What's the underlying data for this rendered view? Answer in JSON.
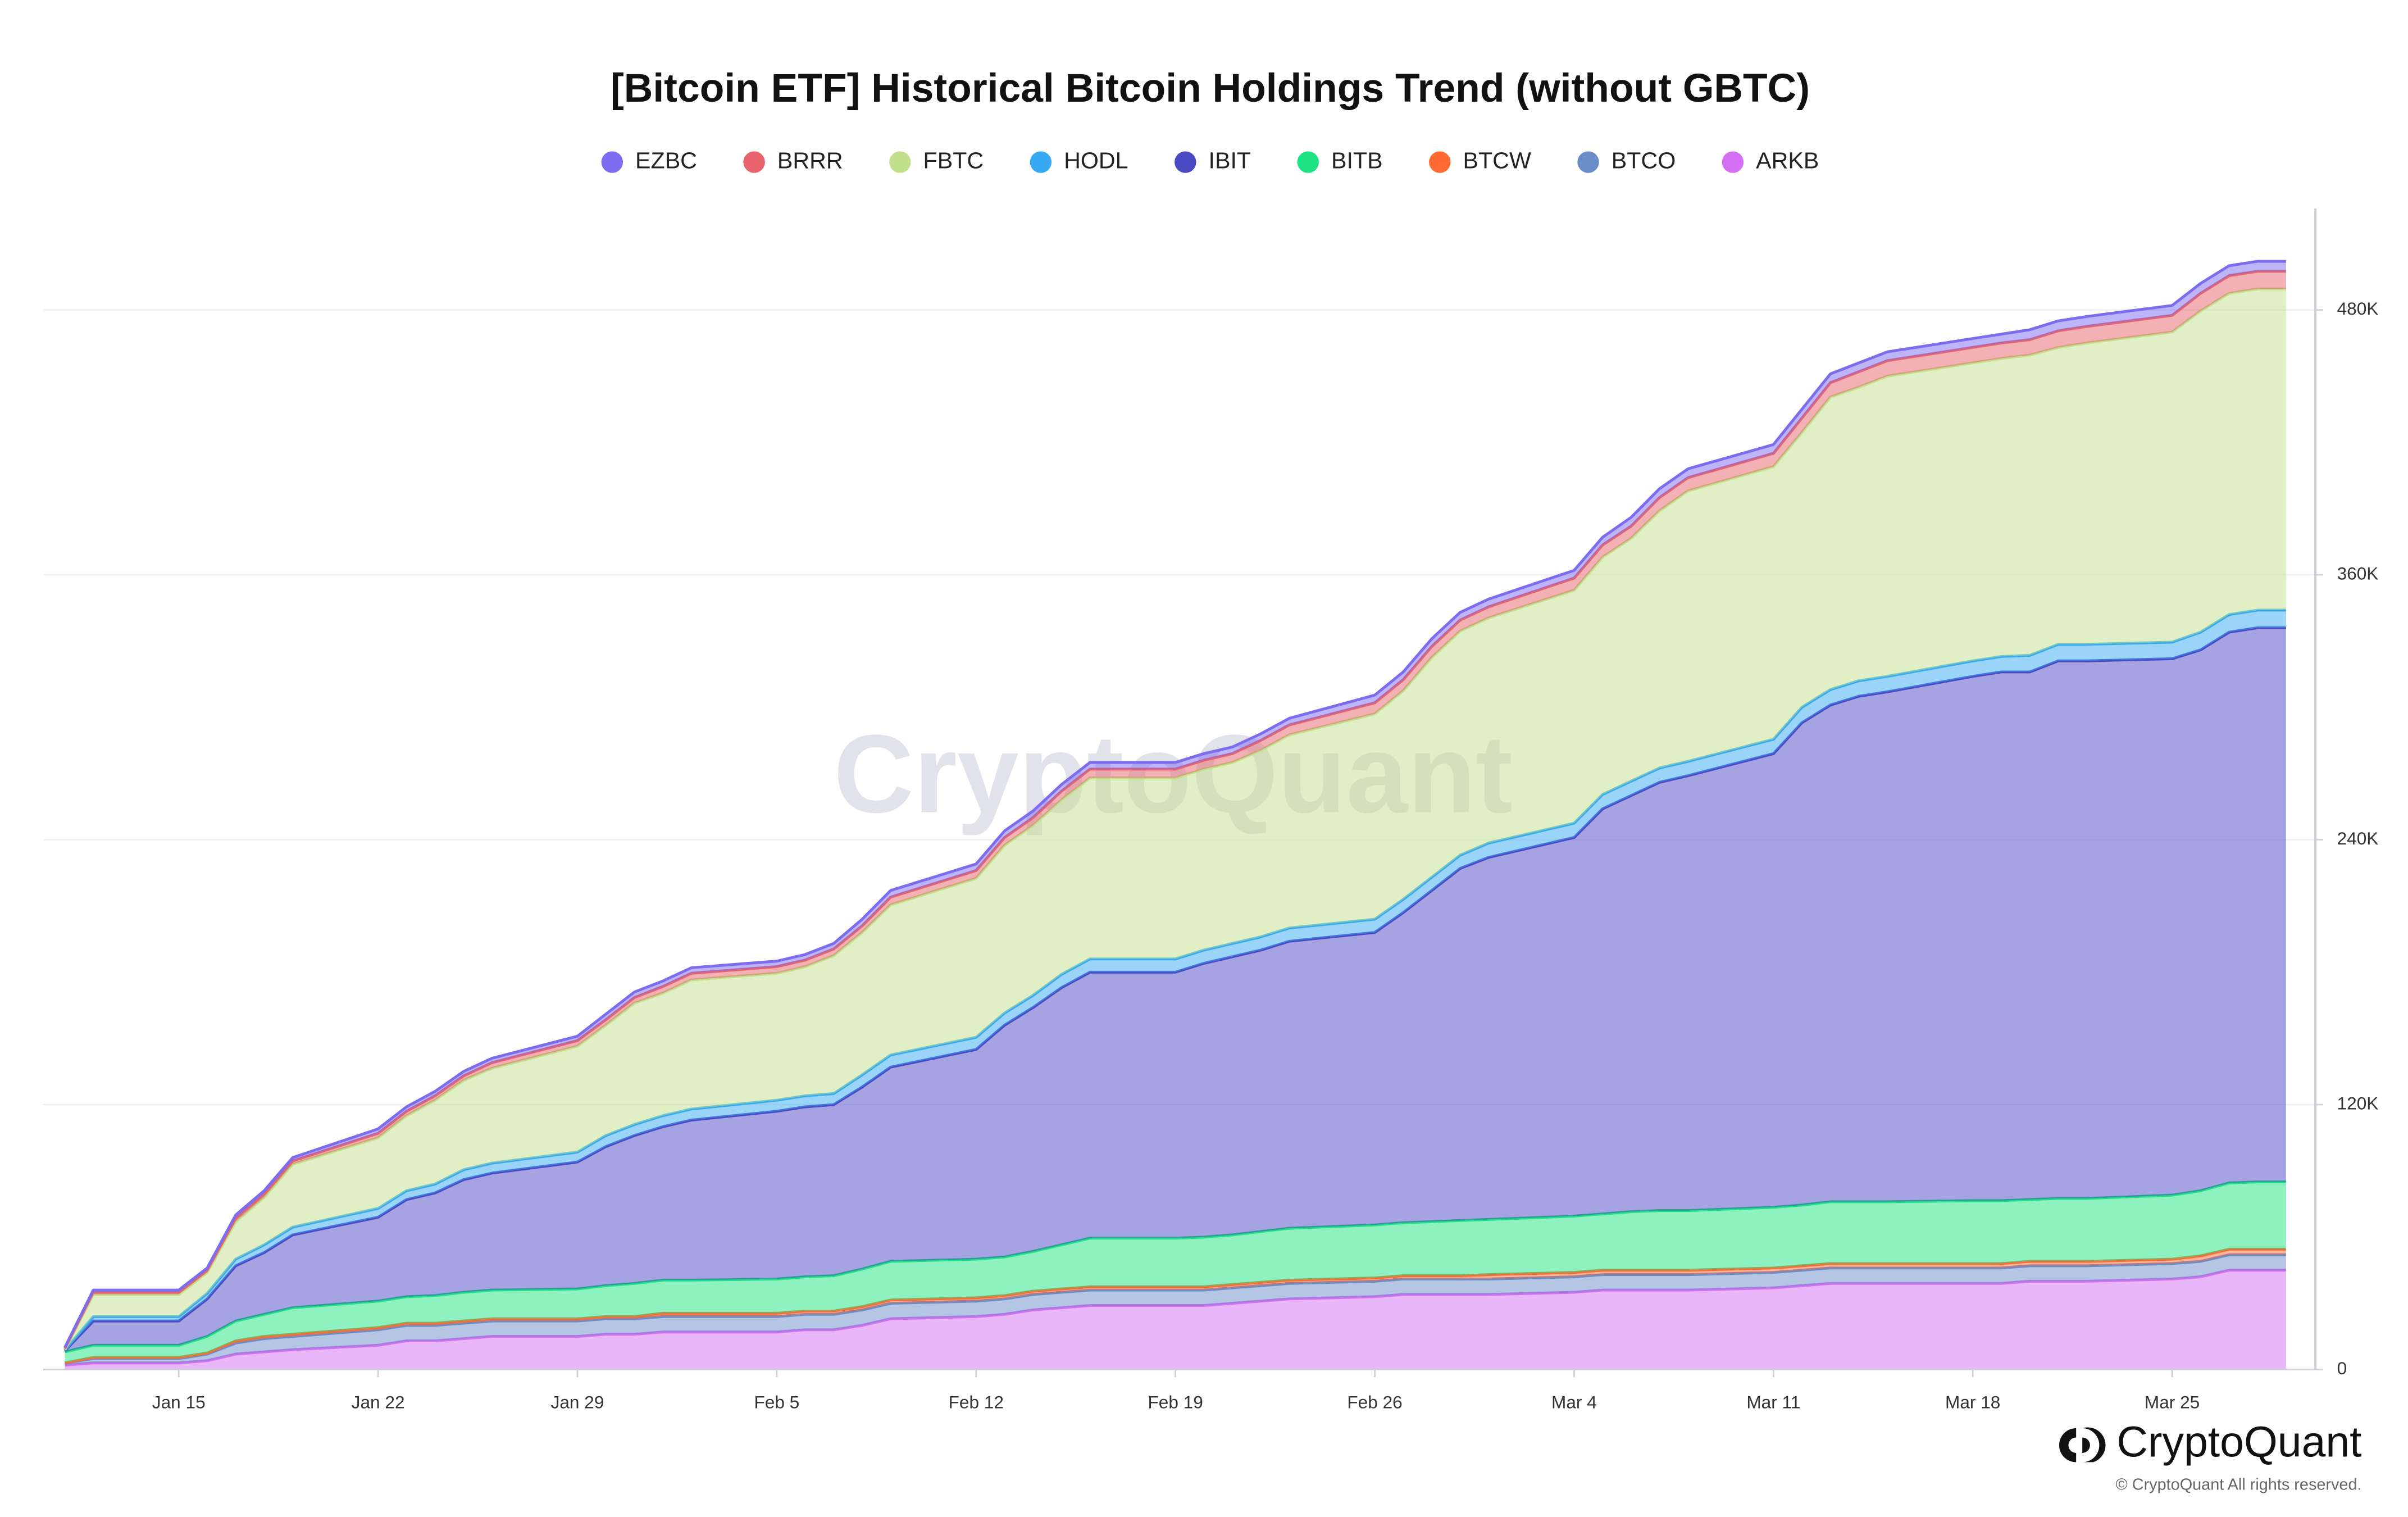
{
  "chart_data": {
    "type": "stacked_area",
    "title": "[Bitcoin ETF] Historical Bitcoin Holdings Trend (without GBTC)",
    "watermark": "CryptoQuant",
    "logo_text": "CryptoQuant",
    "copyright": "© CryptoQuant All rights reserved.",
    "x": [
      "Jan 11",
      "Jan 12",
      "Jan 15",
      "Jan 16",
      "Jan 17",
      "Jan 18",
      "Jan 19",
      "Jan 22",
      "Jan 23",
      "Jan 24",
      "Jan 25",
      "Jan 26",
      "Jan 29",
      "Jan 30",
      "Jan 31",
      "Feb 1",
      "Feb 2",
      "Feb 5",
      "Feb 6",
      "Feb 7",
      "Feb 8",
      "Feb 9",
      "Feb 12",
      "Feb 13",
      "Feb 14",
      "Feb 15",
      "Feb 16",
      "Feb 19",
      "Feb 20",
      "Feb 21",
      "Feb 22",
      "Feb 23",
      "Feb 26",
      "Feb 27",
      "Feb 28",
      "Feb 29",
      "Mar 1",
      "Mar 4",
      "Mar 5",
      "Mar 6",
      "Mar 7",
      "Mar 8",
      "Mar 11",
      "Mar 12",
      "Mar 13",
      "Mar 14",
      "Mar 15",
      "Mar 18",
      "Mar 19",
      "Mar 20",
      "Mar 21",
      "Mar 22",
      "Mar 25",
      "Mar 26",
      "Mar 27",
      "Mar 28",
      "Mar 29"
    ],
    "xlim": [
      "Jan 11",
      "Mar 29"
    ],
    "xticks": [
      "Jan 15",
      "Jan 22",
      "Jan 29",
      "Feb 5",
      "Feb 12",
      "Feb 19",
      "Feb 26",
      "Mar 4",
      "Mar 11",
      "Mar 18",
      "Mar 25"
    ],
    "ylim": [
      0,
      520000
    ],
    "yticks": [
      0,
      {
        "value": 120000,
        "label": "120K"
      },
      {
        "value": 240000,
        "label": "240K"
      },
      {
        "value": 360000,
        "label": "360K"
      },
      {
        "value": 480000,
        "label": "480K"
      }
    ],
    "grid": true,
    "legend": "top",
    "series": [
      {
        "name": "EZBC",
        "color": "#7b6cf0",
        "values": [
          500,
          1000,
          1000,
          1000,
          1500,
          1500,
          1500,
          2000,
          2000,
          2000,
          2000,
          2000,
          2000,
          2500,
          2500,
          2500,
          2500,
          2500,
          2500,
          2500,
          3000,
          3000,
          3000,
          3000,
          3000,
          3000,
          3000,
          3000,
          3000,
          3000,
          3000,
          3000,
          3500,
          3500,
          3500,
          3500,
          3500,
          3500,
          3500,
          4000,
          4000,
          4000,
          4000,
          4000,
          4000,
          4000,
          4000,
          4000,
          4000,
          4500,
          4500,
          4500,
          4500,
          4500,
          4500,
          4500,
          4500
        ]
      },
      {
        "name": "BRRR",
        "color": "#e8646c",
        "values": [
          500,
          1000,
          1000,
          1000,
          1500,
          1500,
          1500,
          2000,
          2000,
          2000,
          2000,
          2500,
          2500,
          2500,
          2500,
          3000,
          3000,
          3000,
          3000,
          3000,
          3000,
          3500,
          3500,
          3500,
          3500,
          4000,
          4000,
          4000,
          4000,
          4000,
          4500,
          4500,
          5000,
          5000,
          5000,
          5000,
          5000,
          5500,
          5500,
          5500,
          6000,
          6000,
          6000,
          6500,
          6500,
          7000,
          7000,
          7000,
          7000,
          7000,
          7500,
          7500,
          7500,
          8000,
          8000,
          8000,
          8000
        ]
      },
      {
        "name": "FBTC",
        "color": "#c2e08c",
        "values": [
          200,
          10000,
          10000,
          9500,
          17000,
          21500,
          28500,
          32000,
          34000,
          38000,
          40500,
          43000,
          48000,
          50000,
          55000,
          55500,
          58500,
          57500,
          58500,
          62500,
          64500,
          68000,
          72000,
          76000,
          77000,
          79000,
          82000,
          82000,
          82000,
          82000,
          84500,
          87500,
          93000,
          94500,
          99500,
          101500,
          102000,
          105500,
          107500,
          110000,
          116500,
          122500,
          123500,
          124500,
          132500,
          133000,
          136000,
          135000,
          135000,
          136000,
          134500,
          136500,
          140500,
          145500,
          145500,
          145500,
          145500
        ]
      },
      {
        "name": "HODL",
        "color": "#35aaf2",
        "values": [
          300,
          2000,
          2000,
          2500,
          3000,
          3500,
          3500,
          4000,
          4000,
          4000,
          4500,
          4500,
          4500,
          5000,
          5000,
          5000,
          5000,
          5000,
          5000,
          5000,
          5500,
          5500,
          5500,
          5500,
          5500,
          6000,
          6000,
          6000,
          6000,
          6000,
          6000,
          6000,
          6000,
          6000,
          6000,
          6000,
          6500,
          6500,
          6500,
          6500,
          6500,
          6500,
          6500,
          7000,
          7000,
          7000,
          7000,
          7000,
          7000,
          7500,
          7500,
          7500,
          7500,
          8000,
          8000,
          8000,
          8000
        ]
      },
      {
        "name": "IBIT",
        "color": "#4b48c4",
        "values": [
          500,
          11000,
          11000,
          17000,
          25000,
          28000,
          33000,
          38000,
          44000,
          46500,
          51000,
          53000,
          57500,
          63000,
          67000,
          69500,
          72500,
          76000,
          77000,
          77500,
          82500,
          88000,
          95000,
          105000,
          110500,
          116500,
          120500,
          120500,
          124000,
          126000,
          127500,
          130000,
          132500,
          140500,
          150000,
          159500,
          164000,
          171500,
          183500,
          188500,
          194000,
          197000,
          205500,
          218500,
          225000,
          229000,
          231000,
          237500,
          239500,
          239000,
          243500,
          243500,
          243000,
          245000,
          249500,
          251000,
          251000
        ]
      },
      {
        "name": "BITB",
        "color": "#1de382",
        "values": [
          5000,
          5500,
          5500,
          7500,
          9000,
          10000,
          12000,
          12000,
          12000,
          12500,
          13000,
          13000,
          13500,
          14000,
          15000,
          15000,
          15000,
          15500,
          15500,
          16000,
          17000,
          17500,
          17500,
          17500,
          18000,
          20000,
          22000,
          22000,
          22500,
          22500,
          23000,
          23500,
          24000,
          24000,
          24500,
          25000,
          25000,
          25500,
          25500,
          26500,
          27000,
          27000,
          27500,
          27500,
          28000,
          28000,
          28000,
          28500,
          28500,
          28000,
          28500,
          28500,
          29000,
          29500,
          30000,
          30500,
          30500
        ]
      },
      {
        "name": "BTCW",
        "color": "#ff6a33",
        "values": [
          0,
          500,
          500,
          500,
          1000,
          1000,
          1000,
          1000,
          1000,
          1000,
          1000,
          1000,
          1000,
          1000,
          1000,
          1500,
          1500,
          1500,
          1500,
          1500,
          1500,
          1500,
          1500,
          1500,
          1500,
          1500,
          1500,
          1500,
          1500,
          1500,
          1500,
          1500,
          1500,
          1500,
          1500,
          1500,
          2000,
          2000,
          2000,
          2000,
          2000,
          2000,
          2000,
          2000,
          2000,
          2000,
          2000,
          2000,
          2000,
          2000,
          2000,
          2000,
          2000,
          2500,
          2500,
          2500,
          2500
        ]
      },
      {
        "name": "BTCO",
        "color": "#6a8dc8",
        "values": [
          1000,
          2000,
          2000,
          3000,
          5000,
          6000,
          6000,
          7000,
          7000,
          7000,
          7000,
          7000,
          7000,
          7000,
          7000,
          7000,
          7000,
          7000,
          7000,
          7000,
          7000,
          7000,
          7000,
          7000,
          7000,
          7000,
          7000,
          7000,
          7000,
          7000,
          7000,
          7000,
          7000,
          7000,
          7000,
          7000,
          7000,
          7000,
          7000,
          7000,
          7000,
          7000,
          7000,
          7000,
          7000,
          7000,
          7000,
          7000,
          7000,
          7000,
          7000,
          7000,
          7000,
          7000,
          7000,
          7000,
          7000
        ]
      },
      {
        "name": "ARKB",
        "color": "#d46ef4",
        "values": [
          2000,
          3000,
          3000,
          4000,
          7000,
          8000,
          9000,
          11000,
          13000,
          13000,
          14000,
          15000,
          15000,
          16000,
          16000,
          17000,
          17000,
          17000,
          18000,
          18000,
          20000,
          23000,
          24000,
          25000,
          27000,
          28000,
          29000,
          29000,
          29000,
          30000,
          31000,
          32000,
          33000,
          34000,
          34000,
          34000,
          34000,
          35000,
          36000,
          36000,
          36000,
          36000,
          37000,
          38000,
          39000,
          39000,
          39000,
          39000,
          39000,
          40000,
          40000,
          40000,
          41000,
          42000,
          45000,
          45000,
          45000
        ]
      }
    ]
  }
}
